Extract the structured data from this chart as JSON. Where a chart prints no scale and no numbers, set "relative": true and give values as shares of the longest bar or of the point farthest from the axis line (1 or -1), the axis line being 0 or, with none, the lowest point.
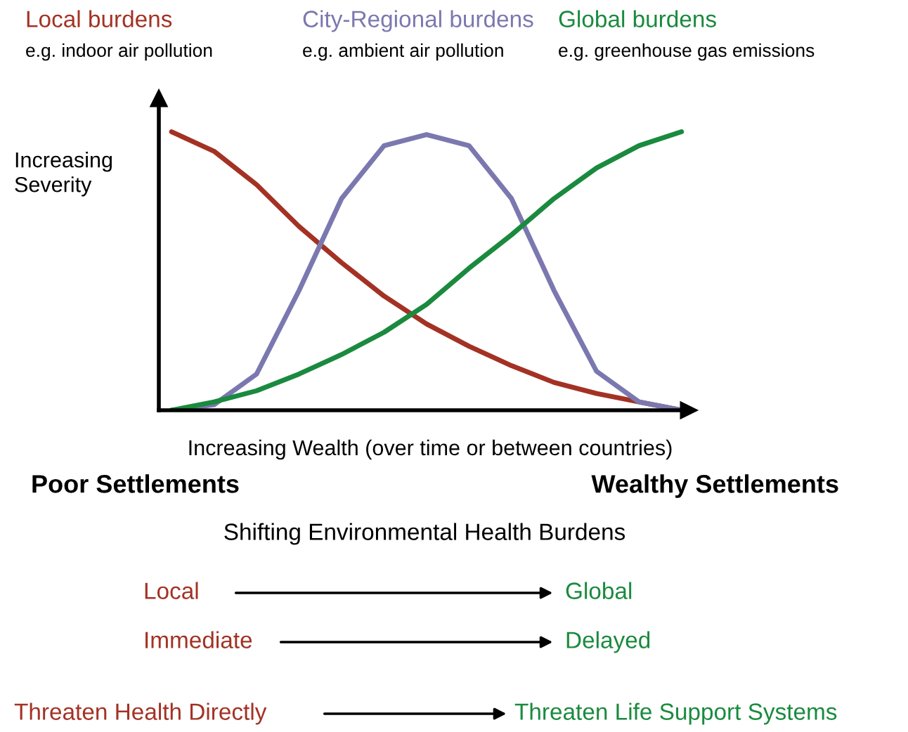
{
  "chart_data": {
    "type": "line",
    "relative": true,
    "xlabel": "Increasing Wealth (over time or between countries)",
    "ylabel": "Increasing\nSeverity",
    "categories": [
      null,
      null,
      null,
      null,
      null,
      null,
      null,
      null,
      null,
      null,
      null,
      null,
      null
    ],
    "series": [
      {
        "name": "Local burdens",
        "color": "#a33224",
        "values": [
          1.0,
          0.93,
          0.81,
          0.66,
          0.53,
          0.41,
          0.31,
          0.23,
          0.16,
          0.1,
          0.06,
          0.03,
          0.0
        ]
      },
      {
        "name": "City-Regional burdens",
        "color": "#7b78b0",
        "values": [
          0.0,
          0.02,
          0.13,
          0.43,
          0.76,
          0.95,
          0.99,
          0.95,
          0.76,
          0.43,
          0.14,
          0.03,
          0.0
        ]
      },
      {
        "name": "Global burdens",
        "color": "#1a8a3e",
        "values": [
          0.0,
          0.03,
          0.07,
          0.13,
          0.2,
          0.28,
          0.38,
          0.51,
          0.63,
          0.76,
          0.87,
          0.95,
          1.0
        ]
      }
    ],
    "annotations": [
      "e.g. indoor air pollution",
      "e.g. ambient air pollution",
      "e.g. greenhouse gas emissions",
      "Poor Settlements",
      "Wealthy Settlements",
      "Shifting Environmental Health Burdens",
      "Local",
      "Global",
      "Immediate",
      "Delayed",
      "Threaten Health Directly",
      "Threaten Life Support Systems"
    ]
  }
}
